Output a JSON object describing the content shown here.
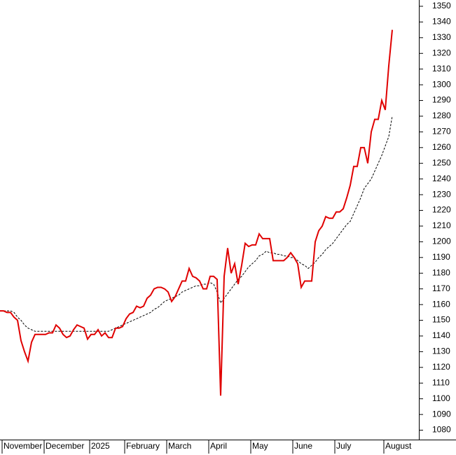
{
  "chart_data": {
    "type": "line",
    "categories": [
      null,
      "November",
      null,
      null,
      null,
      null,
      null,
      null,
      null,
      null,
      null,
      null,
      null,
      "December",
      null,
      null,
      null,
      null,
      null,
      null,
      null,
      null,
      null,
      null,
      null,
      null,
      "2025",
      null,
      null,
      null,
      null,
      null,
      null,
      null,
      null,
      null,
      "February",
      null,
      null,
      null,
      null,
      null,
      null,
      null,
      null,
      null,
      null,
      null,
      "March",
      null,
      null,
      null,
      null,
      null,
      null,
      null,
      null,
      null,
      null,
      null,
      "April",
      null,
      null,
      null,
      null,
      null,
      null,
      null,
      null,
      null,
      null,
      null,
      "May",
      null,
      null,
      null,
      null,
      null,
      null,
      null,
      null,
      null,
      null,
      null,
      "June",
      null,
      null,
      null,
      null,
      null,
      null,
      null,
      null,
      null,
      null,
      null,
      "July",
      null,
      null,
      null,
      null,
      null,
      null,
      null,
      null,
      null,
      null,
      null,
      null,
      null,
      "August",
      null,
      null
    ],
    "series": [
      {
        "color": "#e00000",
        "dash": false,
        "values": [
          1156,
          1156,
          1155,
          1155,
          1152,
          1150,
          1137,
          1130,
          1124,
          1136,
          1141,
          1141,
          1141,
          1141,
          1142,
          1142,
          1147,
          1145,
          1141,
          1139,
          1140,
          1144,
          1147,
          1146,
          1145,
          1138,
          1141,
          1141,
          1144,
          1140,
          1142,
          1139,
          1139,
          1145,
          1145,
          1146,
          1151,
          1154,
          1155,
          1159,
          1158,
          1159,
          1164,
          1166,
          1170,
          1171,
          1171,
          1170,
          1168,
          1162,
          1165,
          1170,
          1175,
          1175,
          1183,
          1178,
          1177,
          1175,
          1170,
          1170,
          1178,
          1178,
          1176,
          1102,
          1178,
          1196,
          1180,
          1186,
          1173,
          1185,
          1199,
          1197,
          1198,
          1198,
          1205,
          1202,
          1202,
          1202,
          1188,
          1188,
          1188,
          1188,
          1190,
          1193,
          1190,
          1186,
          1171,
          1175,
          1175,
          1175,
          1200,
          1207,
          1210,
          1216,
          1215,
          1215,
          1219,
          1219,
          1221,
          1228,
          1236,
          1248,
          1248,
          1260,
          1260,
          1250,
          1270,
          1278,
          1278,
          1290,
          1284,
          1312,
          1335
        ]
      },
      {
        "color": "#000000",
        "dash": true,
        "values": [
          1156,
          1156,
          1156,
          1156,
          1155,
          1152,
          1150,
          1147,
          1145,
          1144,
          1143,
          1143,
          1143,
          1143,
          1143,
          1143,
          1143,
          1143,
          1143,
          1143,
          1143,
          1143,
          1143,
          1143,
          1143,
          1143,
          1143,
          1143,
          1143,
          1143,
          1143,
          1143,
          1144,
          1145,
          1146,
          1147,
          1148,
          1149,
          1150,
          1151,
          1152,
          1153,
          1154,
          1155,
          1157,
          1158,
          1160,
          1162,
          1163,
          1164,
          1165,
          1166,
          1168,
          1169,
          1170,
          1171,
          1172,
          1172,
          1173,
          1173,
          1174,
          1173,
          1168,
          1161,
          1164,
          1167,
          1170,
          1173,
          1176,
          1178,
          1181,
          1184,
          1186,
          1188,
          1191,
          1192,
          1194,
          1193,
          1193,
          1192,
          1192,
          1191,
          1191,
          1190,
          1190,
          1188,
          1186,
          1185,
          1183,
          1185,
          1187,
          1190,
          1192,
          1195,
          1197,
          1199,
          1202,
          1205,
          1208,
          1211,
          1213,
          1218,
          1223,
          1228,
          1234,
          1237,
          1240,
          1245,
          1250,
          1255,
          1261,
          1267,
          1280
        ]
      }
    ],
    "ylim": [
      1074,
      1354
    ],
    "yticks": [
      1080,
      1090,
      1100,
      1110,
      1120,
      1130,
      1140,
      1150,
      1160,
      1170,
      1180,
      1190,
      1200,
      1210,
      1220,
      1230,
      1240,
      1250,
      1260,
      1270,
      1280,
      1290,
      1300,
      1310,
      1320,
      1330,
      1340,
      1350
    ]
  }
}
